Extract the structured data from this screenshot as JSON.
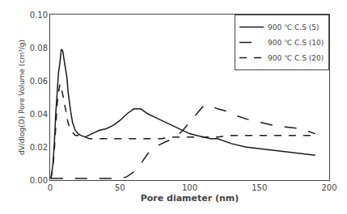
{
  "chart_data": {
    "type": "line",
    "xlabel": "Pore diameter (nm)",
    "ylabel": "dV/dlog(D) Pore Volume (cm³/g)",
    "xlim": [
      0,
      200
    ],
    "ylim": [
      0.0,
      0.1
    ],
    "xticks": [
      0,
      50,
      100,
      150,
      200
    ],
    "yticks": [
      {
        "value": 0.0,
        "label": "0.00"
      },
      {
        "value": 0.02,
        "label": "0.02"
      },
      {
        "value": 0.04,
        "label": "0.04"
      },
      {
        "value": 0.06,
        "label": "0.06"
      },
      {
        "value": 0.08,
        "label": "0.08"
      },
      {
        "value": 0.1,
        "label": "0.10"
      }
    ],
    "grid": false,
    "legend": "upper right",
    "series": [
      {
        "name": "900 ℃ C.S (5)",
        "color": "#1a1a1a",
        "line_style": "solid",
        "x": [
          0.5,
          1.0,
          2.0,
          3.0,
          4.0,
          5.0,
          6.0,
          7.0,
          8.0,
          9.0,
          10.0,
          11.0,
          12.0,
          13.0,
          14.0,
          15.0,
          16.0,
          17.0,
          18.0,
          20.0,
          22.0,
          25.0,
          28.0,
          30.0,
          35.0,
          40.0,
          45.0,
          50.0,
          55.0,
          60.0,
          65.0,
          70.0,
          75.0,
          80.0,
          85.0,
          90.0,
          95.0,
          100.0,
          105.0,
          110.0,
          115.0,
          120.0,
          130.0,
          140.0,
          150.0,
          160.0,
          170.0,
          180.0,
          190.0
        ],
        "values": [
          0.001,
          0.003,
          0.01,
          0.022,
          0.04,
          0.055,
          0.065,
          0.071,
          0.079,
          0.078,
          0.072,
          0.068,
          0.062,
          0.052,
          0.045,
          0.04,
          0.035,
          0.032,
          0.03,
          0.028,
          0.027,
          0.026,
          0.027,
          0.028,
          0.03,
          0.031,
          0.033,
          0.036,
          0.04,
          0.043,
          0.043,
          0.04,
          0.038,
          0.036,
          0.034,
          0.032,
          0.03,
          0.028,
          0.027,
          0.026,
          0.025,
          0.025,
          0.022,
          0.02,
          0.019,
          0.018,
          0.017,
          0.016,
          0.015
        ]
      },
      {
        "name": "900 ℃ C.S (10)",
        "color": "#1a1a1a",
        "line_style": "longdash",
        "x": [
          0.5,
          1.0,
          2.0,
          3.0,
          4.0,
          5.0,
          6.0,
          7.0,
          8.0,
          10.0,
          12.0,
          15.0,
          18.0,
          20.0,
          25.0,
          30.0,
          35.0,
          40.0,
          45.0,
          50.0,
          55.0,
          60.0,
          65.0,
          70.0,
          75.0,
          80.0,
          85.0,
          90.0,
          95.0,
          100.0,
          105.0,
          110.0,
          115.0,
          120.0,
          125.0,
          130.0,
          140.0,
          150.0,
          160.0,
          170.0,
          180.0,
          190.0
        ],
        "values": [
          0.001,
          0.001,
          0.001,
          0.001,
          0.001,
          0.001,
          0.001,
          0.001,
          0.001,
          0.001,
          0.001,
          0.001,
          0.001,
          0.001,
          0.001,
          0.001,
          0.001,
          0.001,
          0.001,
          0.001,
          0.002,
          0.005,
          0.01,
          0.016,
          0.02,
          0.022,
          0.024,
          0.026,
          0.03,
          0.035,
          0.04,
          0.045,
          0.045,
          0.043,
          0.042,
          0.04,
          0.037,
          0.035,
          0.033,
          0.032,
          0.031,
          0.028
        ]
      },
      {
        "name": "900 ℃ C.S (20)",
        "color": "#1a1a1a",
        "line_style": "dash",
        "x": [
          0.5,
          1.0,
          2.0,
          3.0,
          4.0,
          5.0,
          6.0,
          7.0,
          8.0,
          9.0,
          10.0,
          11.0,
          12.0,
          13.0,
          14.0,
          15.0,
          16.0,
          17.0,
          18.0,
          19.0,
          20.0,
          22.0,
          25.0,
          28.0,
          30.0,
          35.0,
          40.0,
          45.0,
          50.0,
          55.0,
          60.0,
          65.0,
          70.0,
          75.0,
          80.0,
          85.0,
          90.0,
          95.0,
          100.0,
          110.0,
          120.0,
          130.0,
          140.0,
          150.0,
          160.0,
          170.0,
          180.0,
          190.0
        ],
        "values": [
          0.001,
          0.003,
          0.008,
          0.018,
          0.032,
          0.046,
          0.053,
          0.058,
          0.056,
          0.052,
          0.048,
          0.043,
          0.038,
          0.034,
          0.032,
          0.03,
          0.029,
          0.028,
          0.027,
          0.027,
          0.027,
          0.026,
          0.026,
          0.025,
          0.025,
          0.025,
          0.025,
          0.025,
          0.025,
          0.025,
          0.025,
          0.025,
          0.025,
          0.025,
          0.025,
          0.026,
          0.026,
          0.026,
          0.026,
          0.026,
          0.026,
          0.027,
          0.027,
          0.027,
          0.027,
          0.027,
          0.027,
          0.027
        ]
      }
    ]
  }
}
